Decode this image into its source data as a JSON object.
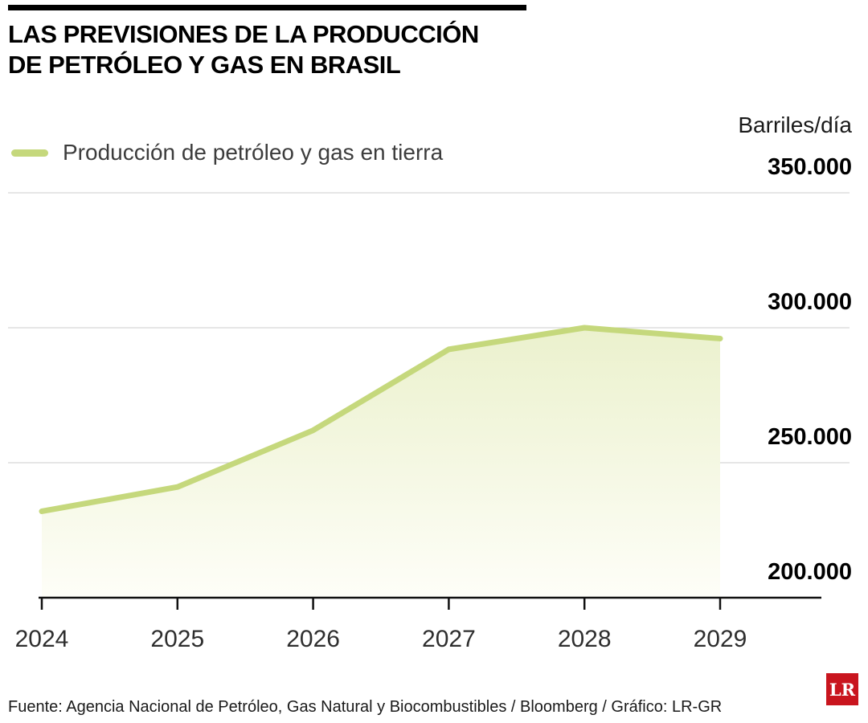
{
  "header": {
    "title": "LAS PREVISIONES DE LA PRODUCCIÓN\nDE PETRÓLEO Y GAS EN BRASIL"
  },
  "chart_data": {
    "type": "area",
    "title": "Las previsiones de la producción de petróleo y gas en Brasil",
    "ylabel": "Barriles/día",
    "xlabel": "",
    "legend": "Producción de petróleo y gas en tierra",
    "legend_position": "top-left",
    "grid": true,
    "x": [
      "2024",
      "2025",
      "2026",
      "2027",
      "2028",
      "2029"
    ],
    "values": [
      232000,
      241000,
      262000,
      292000,
      300000,
      296000
    ],
    "ylim": [
      200000,
      350000
    ],
    "yticks": [
      200000,
      250000,
      300000,
      350000
    ],
    "ytick_labels": [
      "200.000",
      "250.000",
      "300.000",
      "350.000"
    ],
    "line_color": "#c5d87c",
    "fill_top": "#ebf1cd",
    "fill_bottom": "#fefef8",
    "grid_color": "#cccccc",
    "axis_color": "#111111"
  },
  "footer": {
    "source": "Fuente: Agencia Nacional de Petróleo, Gas Natural y Biocombustibles / Bloomberg / Gráfico: LR-GR",
    "logo": "LR",
    "logo_bg": "#c9151e"
  }
}
